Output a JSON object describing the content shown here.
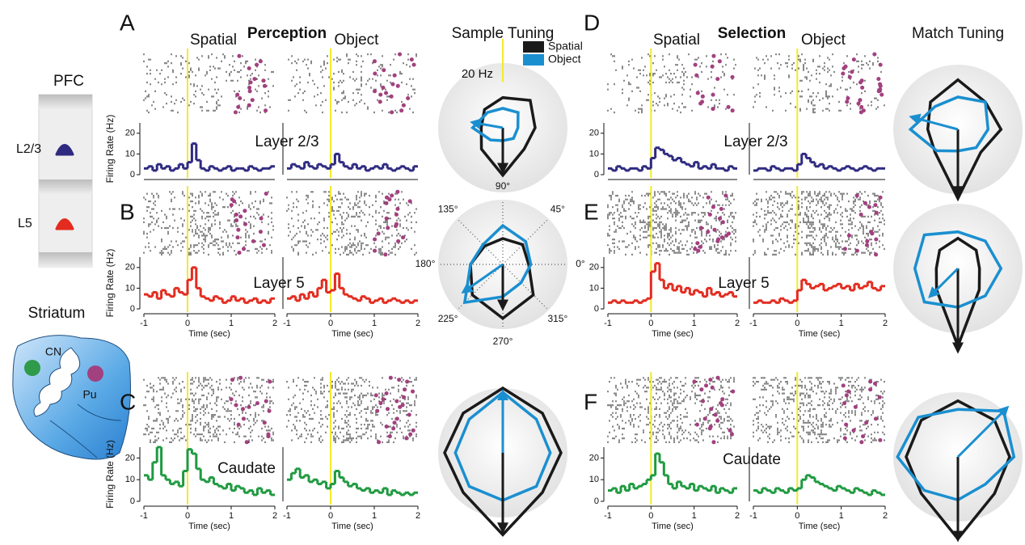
{
  "figure": {
    "panels": [
      "A",
      "B",
      "C",
      "D",
      "E",
      "F"
    ],
    "headings": [
      "Perception",
      "Selection"
    ],
    "pfc": "PFC",
    "layers": [
      "L2/3",
      "L5"
    ],
    "striatum": "Striatum",
    "cn": "CN",
    "pu": "Pu"
  },
  "chart_data": [
    {
      "type": "histogram",
      "title": "Spatial",
      "annotation": "Layer 2/3",
      "ylabel": "Firing Rate (Hz)",
      "color": "#2e2a80",
      "bins": [
        -1,
        -0.9,
        -0.8,
        -0.7,
        -0.6,
        -0.5,
        -0.4,
        -0.3,
        -0.2,
        -0.1,
        0,
        0.1,
        0.2,
        0.3,
        0.4,
        0.5,
        0.6,
        0.7,
        0.8,
        0.9,
        1,
        1.1,
        1.2,
        1.3,
        1.4,
        1.5,
        1.6,
        1.7,
        1.8,
        1.9,
        2
      ],
      "values": [
        3,
        4,
        2,
        5,
        3,
        4,
        2,
        3,
        5,
        3,
        6,
        15,
        7,
        3,
        2,
        4,
        3,
        2,
        3,
        4,
        2,
        3,
        3,
        2,
        4,
        3,
        2,
        3,
        3,
        4
      ],
      "xlim": [
        -1,
        2
      ],
      "ylim": [
        0,
        25
      ],
      "yticks": [
        0,
        10,
        20
      ]
    },
    {
      "type": "histogram",
      "title": "Object",
      "color": "#2e2a80",
      "bins": [
        -1,
        -0.9,
        -0.8,
        -0.7,
        -0.6,
        -0.5,
        -0.4,
        -0.3,
        -0.2,
        -0.1,
        0,
        0.1,
        0.2,
        0.3,
        0.4,
        0.5,
        0.6,
        0.7,
        0.8,
        0.9,
        1,
        1.1,
        1.2,
        1.3,
        1.4,
        1.5,
        1.6,
        1.7,
        1.8,
        1.9,
        2
      ],
      "values": [
        3,
        5,
        4,
        3,
        6,
        4,
        3,
        5,
        4,
        3,
        5,
        10,
        6,
        4,
        3,
        5,
        3,
        4,
        2,
        3,
        4,
        3,
        5,
        3,
        2,
        3,
        4,
        3,
        2,
        4
      ],
      "xlim": [
        -1,
        2
      ],
      "ylim": [
        0,
        25
      ]
    },
    {
      "type": "histogram",
      "annotation": "Layer 5",
      "ylabel": "Firing Rate (Hz)",
      "xlabel": "Time (sec)",
      "color": "#e32b1f",
      "bins": [
        -1,
        -0.9,
        -0.8,
        -0.7,
        -0.6,
        -0.5,
        -0.4,
        -0.3,
        -0.2,
        -0.1,
        0,
        0.1,
        0.2,
        0.3,
        0.4,
        0.5,
        0.6,
        0.7,
        0.8,
        0.9,
        1,
        1.1,
        1.2,
        1.3,
        1.4,
        1.5,
        1.6,
        1.7,
        1.8,
        1.9,
        2
      ],
      "values": [
        7,
        6,
        8,
        5,
        9,
        7,
        6,
        10,
        8,
        7,
        14,
        20,
        10,
        6,
        5,
        4,
        6,
        5,
        3,
        4,
        6,
        4,
        5,
        3,
        4,
        5,
        3,
        4,
        3,
        5
      ],
      "xlim": [
        -1,
        2
      ],
      "xticks": [
        -1,
        0,
        1,
        2
      ],
      "ylim": [
        0,
        25
      ],
      "yticks": [
        0,
        10,
        20
      ]
    },
    {
      "type": "histogram",
      "xlabel": "Time (sec)",
      "color": "#e32b1f",
      "bins": [
        -1,
        -0.9,
        -0.8,
        -0.7,
        -0.6,
        -0.5,
        -0.4,
        -0.3,
        -0.2,
        -0.1,
        0,
        0.1,
        0.2,
        0.3,
        0.4,
        0.5,
        0.6,
        0.7,
        0.8,
        0.9,
        1,
        1.1,
        1.2,
        1.3,
        1.4,
        1.5,
        1.6,
        1.7,
        1.8,
        1.9,
        2
      ],
      "values": [
        5,
        6,
        4,
        7,
        5,
        8,
        6,
        10,
        14,
        8,
        9,
        17,
        10,
        7,
        6,
        5,
        4,
        6,
        5,
        3,
        4,
        5,
        3,
        4,
        5,
        4,
        3,
        4,
        3,
        4
      ],
      "xlim": [
        -1,
        2
      ],
      "xticks": [
        -1,
        0,
        1,
        2
      ],
      "ylim": [
        0,
        25
      ]
    },
    {
      "type": "histogram",
      "annotation": "Caudate",
      "ylabel": "Firing Rate (Hz)",
      "xlabel": "Time (sec)",
      "color": "#1f9a40",
      "bins": [
        -1,
        -0.9,
        -0.8,
        -0.7,
        -0.6,
        -0.5,
        -0.4,
        -0.3,
        -0.2,
        -0.1,
        0,
        0.1,
        0.2,
        0.3,
        0.4,
        0.5,
        0.6,
        0.7,
        0.8,
        0.9,
        1,
        1.1,
        1.2,
        1.3,
        1.4,
        1.5,
        1.6,
        1.7,
        1.8,
        1.9,
        2
      ],
      "values": [
        12,
        10,
        18,
        25,
        12,
        10,
        8,
        9,
        7,
        14,
        24,
        22,
        15,
        10,
        9,
        11,
        8,
        7,
        6,
        8,
        5,
        7,
        6,
        4,
        5,
        3,
        6,
        4,
        5,
        3
      ],
      "xlim": [
        -1,
        2
      ],
      "xticks": [
        -1,
        0,
        1,
        2
      ],
      "ylim": [
        0,
        25
      ],
      "yticks": [
        0,
        10,
        20
      ]
    },
    {
      "type": "histogram",
      "xlabel": "Time (sec)",
      "color": "#1f9a40",
      "bins": [
        -1,
        -0.9,
        -0.8,
        -0.7,
        -0.6,
        -0.5,
        -0.4,
        -0.3,
        -0.2,
        -0.1,
        0,
        0.1,
        0.2,
        0.3,
        0.4,
        0.5,
        0.6,
        0.7,
        0.8,
        0.9,
        1,
        1.1,
        1.2,
        1.3,
        1.4,
        1.5,
        1.6,
        1.7,
        1.8,
        1.9,
        2
      ],
      "values": [
        10,
        13,
        15,
        11,
        12,
        9,
        10,
        8,
        9,
        6,
        8,
        14,
        11,
        9,
        7,
        8,
        6,
        5,
        6,
        4,
        5,
        4,
        6,
        3,
        5,
        4,
        3,
        4,
        3,
        4
      ],
      "xlim": [
        -1,
        2
      ],
      "xticks": [
        -1,
        0,
        1,
        2
      ],
      "ylim": [
        0,
        25
      ]
    },
    {
      "type": "histogram",
      "title": "Spatial",
      "annotation": "Layer 2/3",
      "color": "#2e2a80",
      "bins": [
        -1,
        -0.9,
        -0.8,
        -0.7,
        -0.6,
        -0.5,
        -0.4,
        -0.3,
        -0.2,
        -0.1,
        0,
        0.1,
        0.2,
        0.3,
        0.4,
        0.5,
        0.6,
        0.7,
        0.8,
        0.9,
        1,
        1.1,
        1.2,
        1.3,
        1.4,
        1.5,
        1.6,
        1.7,
        1.8,
        1.9,
        2
      ],
      "values": [
        3,
        2,
        4,
        3,
        2,
        3,
        3,
        2,
        4,
        3,
        8,
        13,
        12,
        10,
        9,
        7,
        8,
        6,
        5,
        4,
        6,
        3,
        4,
        3,
        5,
        3,
        3,
        2,
        4,
        3
      ],
      "xlim": [
        -1,
        2
      ],
      "ylim": [
        0,
        25
      ],
      "yticks": [
        0,
        10,
        20
      ]
    },
    {
      "type": "histogram",
      "title": "Object",
      "color": "#2e2a80",
      "bins": [
        -1,
        -0.9,
        -0.8,
        -0.7,
        -0.6,
        -0.5,
        -0.4,
        -0.3,
        -0.2,
        -0.1,
        0,
        0.1,
        0.2,
        0.3,
        0.4,
        0.5,
        0.6,
        0.7,
        0.8,
        0.9,
        1,
        1.1,
        1.2,
        1.3,
        1.4,
        1.5,
        1.6,
        1.7,
        1.8,
        1.9,
        2
      ],
      "values": [
        2,
        3,
        3,
        2,
        4,
        3,
        2,
        3,
        3,
        2,
        5,
        10,
        8,
        6,
        4,
        5,
        3,
        4,
        3,
        2,
        3,
        4,
        3,
        2,
        3,
        4,
        3,
        2,
        3,
        3
      ],
      "xlim": [
        -1,
        2
      ],
      "ylim": [
        0,
        25
      ]
    },
    {
      "type": "histogram",
      "annotation": "Layer 5",
      "xlabel": "Time (sec)",
      "color": "#e32b1f",
      "bins": [
        -1,
        -0.9,
        -0.8,
        -0.7,
        -0.6,
        -0.5,
        -0.4,
        -0.3,
        -0.2,
        -0.1,
        0,
        0.1,
        0.2,
        0.3,
        0.4,
        0.5,
        0.6,
        0.7,
        0.8,
        0.9,
        1,
        1.1,
        1.2,
        1.3,
        1.4,
        1.5,
        1.6,
        1.7,
        1.8,
        1.9,
        2
      ],
      "values": [
        3,
        4,
        3,
        4,
        3,
        3,
        4,
        3,
        4,
        5,
        18,
        22,
        14,
        10,
        12,
        9,
        11,
        8,
        10,
        7,
        9,
        8,
        6,
        10,
        7,
        8,
        6,
        7,
        8,
        6
      ],
      "xlim": [
        -1,
        2
      ],
      "xticks": [
        -1,
        0,
        1,
        2
      ],
      "ylim": [
        0,
        25
      ],
      "yticks": [
        0,
        10,
        20
      ]
    },
    {
      "type": "histogram",
      "xlabel": "Time (sec)",
      "color": "#e32b1f",
      "bins": [
        -1,
        -0.9,
        -0.8,
        -0.7,
        -0.6,
        -0.5,
        -0.4,
        -0.3,
        -0.2,
        -0.1,
        0,
        0.1,
        0.2,
        0.3,
        0.4,
        0.5,
        0.6,
        0.7,
        0.8,
        0.9,
        1,
        1.1,
        1.2,
        1.3,
        1.4,
        1.5,
        1.6,
        1.7,
        1.8,
        1.9,
        2
      ],
      "values": [
        3,
        4,
        3,
        3,
        4,
        3,
        5,
        4,
        3,
        4,
        9,
        14,
        12,
        10,
        11,
        12,
        9,
        10,
        11,
        12,
        10,
        11,
        9,
        12,
        10,
        11,
        13,
        10,
        9,
        11
      ],
      "xlim": [
        -1,
        2
      ],
      "xticks": [
        -1,
        0,
        1,
        2
      ],
      "ylim": [
        0,
        25
      ]
    },
    {
      "type": "histogram",
      "annotation": "Caudate",
      "xlabel": "Time (sec)",
      "color": "#1f9a40",
      "bins": [
        -1,
        -0.9,
        -0.8,
        -0.7,
        -0.6,
        -0.5,
        -0.4,
        -0.3,
        -0.2,
        -0.1,
        0,
        0.1,
        0.2,
        0.3,
        0.4,
        0.5,
        0.6,
        0.7,
        0.8,
        0.9,
        1,
        1.1,
        1.2,
        1.3,
        1.4,
        1.5,
        1.6,
        1.7,
        1.8,
        1.9,
        2
      ],
      "values": [
        5,
        6,
        4,
        7,
        5,
        8,
        6,
        7,
        8,
        10,
        12,
        22,
        18,
        12,
        8,
        6,
        9,
        7,
        6,
        8,
        5,
        7,
        6,
        5,
        7,
        4,
        6,
        5,
        4,
        6
      ],
      "xlim": [
        -1,
        2
      ],
      "xticks": [
        -1,
        0,
        1,
        2
      ],
      "ylim": [
        0,
        25
      ],
      "yticks": [
        0,
        10,
        20
      ]
    },
    {
      "type": "histogram",
      "xlabel": "Time (sec)",
      "color": "#1f9a40",
      "bins": [
        -1,
        -0.9,
        -0.8,
        -0.7,
        -0.6,
        -0.5,
        -0.4,
        -0.3,
        -0.2,
        -0.1,
        0,
        0.1,
        0.2,
        0.3,
        0.4,
        0.5,
        0.6,
        0.7,
        0.8,
        0.9,
        1,
        1.1,
        1.2,
        1.3,
        1.4,
        1.5,
        1.6,
        1.7,
        1.8,
        1.9,
        2
      ],
      "values": [
        5,
        4,
        6,
        5,
        4,
        6,
        5,
        4,
        6,
        5,
        6,
        10,
        12,
        11,
        9,
        8,
        7,
        6,
        5,
        7,
        6,
        5,
        4,
        6,
        5,
        4,
        3,
        5,
        4,
        3
      ],
      "xlim": [
        -1,
        2
      ],
      "xticks": [
        -1,
        0,
        1,
        2
      ],
      "ylim": [
        0,
        25
      ]
    },
    {
      "type": "radar",
      "title": "Sample Tuning",
      "rlim": [
        0,
        30
      ],
      "legend": "top-right",
      "scale": {
        "value": 20,
        "label": "20 Hz"
      },
      "angles": [
        0,
        45,
        90,
        135,
        180,
        225,
        270,
        315
      ],
      "series": [
        {
          "name": "Spatial",
          "color": "#1a1a1a",
          "values": [
            15,
            18,
            14,
            12,
            10,
            14,
            22,
            14
          ],
          "vector": {
            "angle": 270,
            "magnitude": 20
          }
        },
        {
          "name": "Object",
          "color": "#1a8fd0",
          "values": [
            7,
            10,
            9,
            10,
            14,
            8,
            6,
            7
          ],
          "vector": {
            "angle": 170,
            "magnitude": 14
          }
        }
      ]
    },
    {
      "type": "radar",
      "rlim": [
        0,
        30
      ],
      "angles": [
        {
          "value": 0,
          "label": "0°"
        },
        {
          "value": 45,
          "label": "45°"
        },
        {
          "value": 90,
          "label": "90°"
        },
        {
          "value": 135,
          "label": "135°"
        },
        {
          "value": 180,
          "label": "180°"
        },
        {
          "value": 225,
          "label": "225°"
        },
        {
          "value": 270,
          "label": "270°"
        },
        {
          "value": 315,
          "label": "315°"
        }
      ],
      "series": [
        {
          "color": "#1a1a1a",
          "values": [
            12,
            13,
            12,
            12,
            15,
            20,
            25,
            20
          ],
          "vector": {
            "angle": 270,
            "magnitude": 20
          }
        },
        {
          "color": "#1a8fd0",
          "values": [
            13,
            15,
            18,
            13,
            15,
            25,
            15,
            12
          ],
          "vector": {
            "angle": 215,
            "magnitude": 22
          }
        }
      ]
    },
    {
      "type": "radar",
      "rlim": [
        0,
        30
      ],
      "angles": [
        0,
        45,
        90,
        135,
        180,
        225,
        270,
        315
      ],
      "series": [
        {
          "color": "#1a1a1a",
          "values": [
            27,
            26,
            30,
            26,
            27,
            26,
            38,
            26
          ],
          "vector": {
            "angle": 270,
            "magnitude": 36
          }
        },
        {
          "color": "#1a8fd0",
          "values": [
            22,
            22,
            28,
            22,
            22,
            22,
            22,
            22
          ],
          "vector": {
            "angle": 90,
            "magnitude": 28
          }
        }
      ]
    },
    {
      "type": "radar",
      "title": "Match Tuning",
      "rlim": [
        0,
        30
      ],
      "angles": [
        0,
        45,
        90,
        135,
        180,
        225,
        270,
        315
      ],
      "series": [
        {
          "color": "#1a1a1a",
          "values": [
            20,
            18,
            23,
            18,
            14,
            15,
            32,
            15
          ],
          "vector": {
            "angle": 270,
            "magnitude": 30
          }
        },
        {
          "color": "#1a8fd0",
          "values": [
            14,
            18,
            15,
            15,
            22,
            14,
            10,
            12
          ],
          "vector": {
            "angle": 165,
            "magnitude": 22
          }
        }
      ]
    },
    {
      "type": "radar",
      "rlim": [
        0,
        30
      ],
      "angles": [
        0,
        45,
        90,
        135,
        180,
        225,
        270,
        315
      ],
      "series": [
        {
          "color": "#1a1a1a",
          "values": [
            10,
            12,
            14,
            12,
            10,
            14,
            36,
            14
          ],
          "vector": {
            "angle": 270,
            "magnitude": 38
          }
        },
        {
          "color": "#1a8fd0",
          "values": [
            20,
            18,
            17,
            22,
            20,
            22,
            18,
            18
          ],
          "vector": {
            "angle": 225,
            "magnitude": 18
          }
        }
      ]
    },
    {
      "type": "radar",
      "rlim": [
        0,
        30
      ],
      "angles": [
        0,
        45,
        90,
        135,
        180,
        225,
        270,
        315
      ],
      "series": [
        {
          "color": "#1a1a1a",
          "values": [
            24,
            24,
            26,
            24,
            24,
            24,
            38,
            24
          ],
          "vector": {
            "angle": 270,
            "magnitude": 38
          }
        },
        {
          "color": "#1a8fd0",
          "values": [
            26,
            30,
            22,
            26,
            28,
            22,
            20,
            18
          ],
          "vector": {
            "angle": 45,
            "magnitude": 32
          }
        }
      ]
    }
  ]
}
